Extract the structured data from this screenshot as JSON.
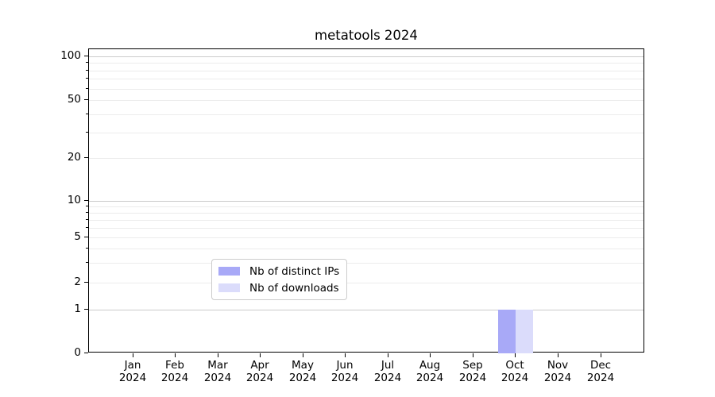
{
  "chart_data": {
    "type": "bar",
    "title": "metatools 2024",
    "categories": [
      "Jan 2024",
      "Feb 2024",
      "Mar 2024",
      "Apr 2024",
      "May 2024",
      "Jun 2024",
      "Jul 2024",
      "Aug 2024",
      "Sep 2024",
      "Oct 2024",
      "Nov 2024",
      "Dec 2024"
    ],
    "series": [
      {
        "name": "Nb of distinct IPs",
        "color": "#a8a9f7",
        "values": [
          0,
          0,
          0,
          0,
          0,
          0,
          0,
          0,
          0,
          1,
          0,
          0
        ]
      },
      {
        "name": "Nb of downloads",
        "color": "#dbdcfb",
        "values": [
          0,
          0,
          0,
          0,
          0,
          0,
          0,
          0,
          0,
          1,
          0,
          0
        ]
      }
    ],
    "xlabel": "",
    "ylabel": "",
    "y_ticks": [
      0,
      1,
      2,
      5,
      10,
      20,
      50,
      100
    ],
    "ylim": [
      0,
      110
    ],
    "yscale": "log-like",
    "grid": true,
    "legend_position": "bottom-center"
  }
}
